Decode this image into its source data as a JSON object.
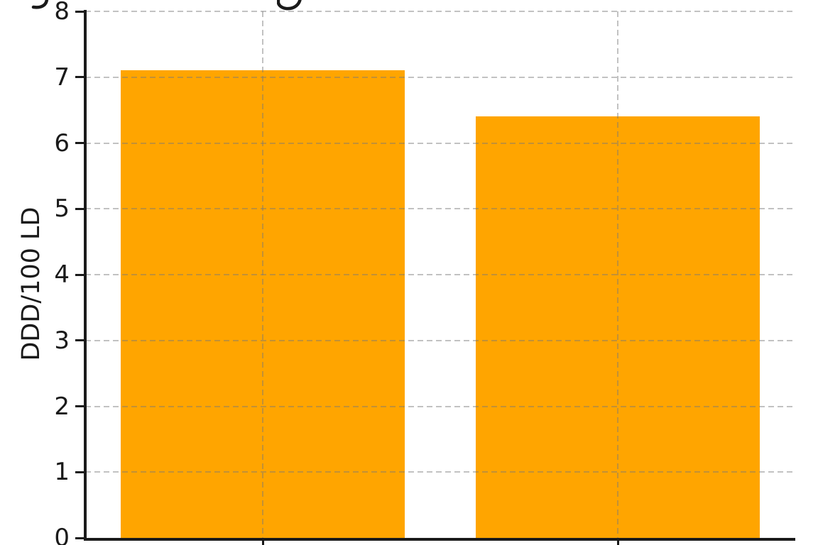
{
  "chart_data": {
    "type": "bar",
    "categories": [
      "",
      ""
    ],
    "values": [
      7.1,
      6.4
    ],
    "title": "",
    "clipped_title_descenders": [
      "y-descender",
      "g-descender"
    ],
    "xlabel": "",
    "ylabel": "DDD/100 LD",
    "ylim": [
      0,
      8
    ],
    "yticks": [
      0,
      1,
      2,
      3,
      4,
      5,
      6,
      7,
      8
    ],
    "bar_color": "#FFA500",
    "grid": true,
    "grid_style": "dashed",
    "grid_color": "#c8c8c8",
    "axis_color": "#1a1a1a",
    "legend": null
  }
}
